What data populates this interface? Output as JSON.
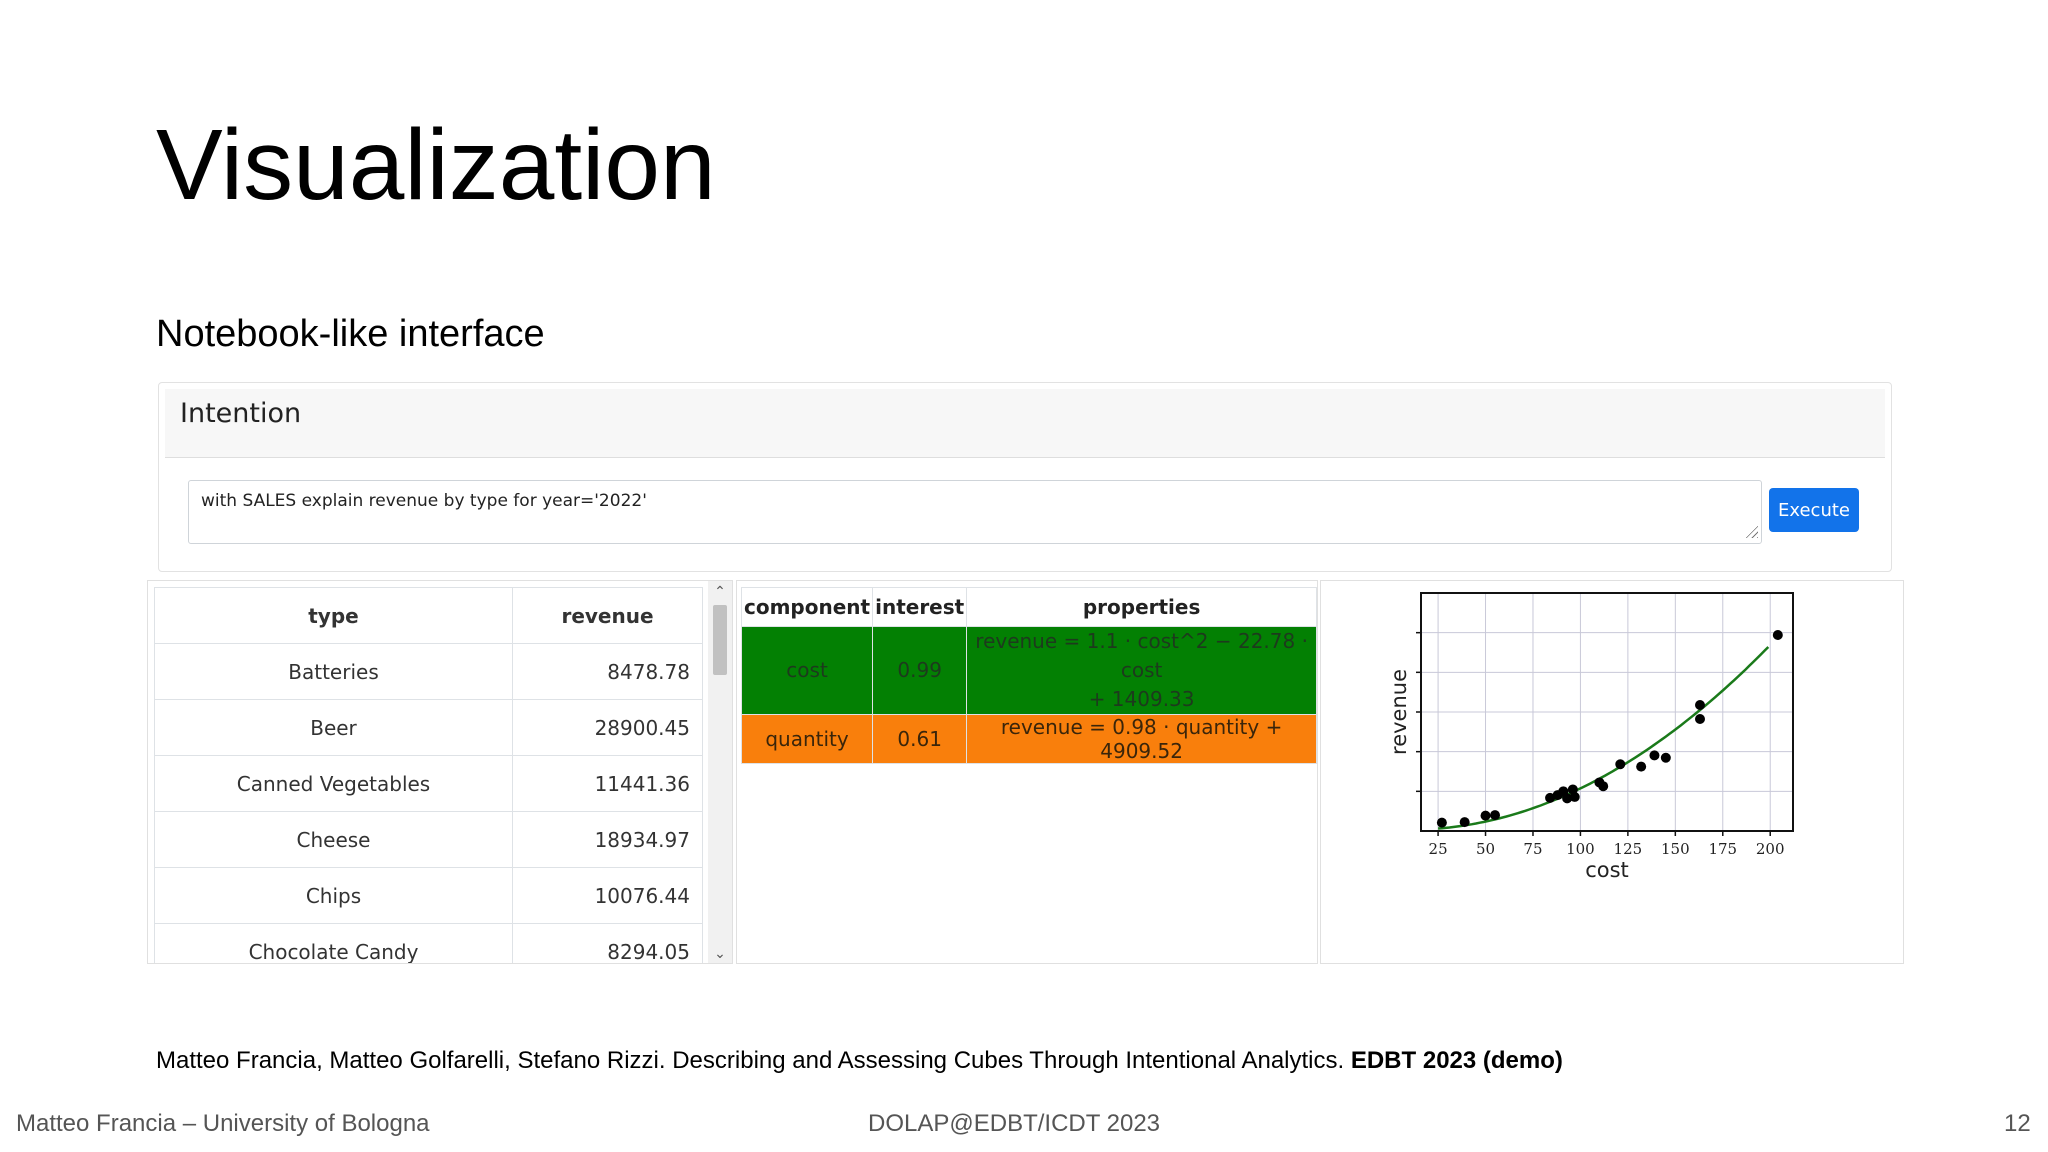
{
  "slide": {
    "title": "Visualization",
    "subtitle": "Notebook-like interface",
    "citation_plain": "Matteo Francia, Matteo Golfarelli, Stefano Rizzi. Describing and Assessing Cubes Through Intentional Analytics.",
    "citation_bold": "EDBT 2023 (demo)",
    "footer_author": "Matteo Francia – University of Bologna",
    "footer_venue": "DOLAP@EDBT/ICDT 2023",
    "page_number": "12"
  },
  "intention": {
    "title": "Intention",
    "query": "with SALES explain revenue by type for year='2022'",
    "execute_label": "Execute"
  },
  "data_table": {
    "headers": [
      "type",
      "revenue"
    ],
    "rows": [
      [
        "Batteries",
        "8478.78"
      ],
      [
        "Beer",
        "28900.45"
      ],
      [
        "Canned Vegetables",
        "11441.36"
      ],
      [
        "Cheese",
        "18934.97"
      ],
      [
        "Chips",
        "10076.44"
      ],
      [
        "Chocolate Candy",
        "8294.05"
      ]
    ]
  },
  "component_table": {
    "headers": [
      "component",
      "interest",
      "properties"
    ],
    "rows": [
      {
        "component": "cost",
        "interest": "0.99",
        "properties_line1": "revenue = 1.1 · cost^2 − 22.78 · cost",
        "properties_line2": "+ 1409.33",
        "color": "#038003"
      },
      {
        "component": "quantity",
        "interest": "0.61",
        "properties_line1": "revenue = 0.98 · quantity + 4909.52",
        "properties_line2": "",
        "color": "#f97f0c"
      }
    ]
  },
  "chart_data": {
    "type": "scatter",
    "xlabel": "cost",
    "ylabel": "revenue",
    "xlim": [
      16,
      212
    ],
    "ylim": [
      1000,
      52000
    ],
    "x_ticks": [
      25,
      50,
      75,
      100,
      125,
      150,
      175,
      200
    ],
    "grid": true,
    "legend": "none",
    "points": [
      {
        "x": 27,
        "y": 2800
      },
      {
        "x": 39,
        "y": 2900
      },
      {
        "x": 50,
        "y": 4300
      },
      {
        "x": 55,
        "y": 4400
      },
      {
        "x": 84,
        "y": 8100
      },
      {
        "x": 88,
        "y": 8700
      },
      {
        "x": 91,
        "y": 9500
      },
      {
        "x": 93,
        "y": 8000
      },
      {
        "x": 96,
        "y": 9900
      },
      {
        "x": 97,
        "y": 8300
      },
      {
        "x": 110,
        "y": 11400
      },
      {
        "x": 112,
        "y": 10600
      },
      {
        "x": 121,
        "y": 15300
      },
      {
        "x": 132,
        "y": 14800
      },
      {
        "x": 139,
        "y": 17200
      },
      {
        "x": 145,
        "y": 16700
      },
      {
        "x": 163,
        "y": 25000
      },
      {
        "x": 163,
        "y": 28000
      },
      {
        "x": 204,
        "y": 43000
      }
    ],
    "fit": {
      "label": "revenue = 1.1 · cost^2 − 22.78 · cost + 1409.33",
      "color": "#1a7a1a"
    },
    "x_range_fit": [
      25,
      200
    ]
  }
}
